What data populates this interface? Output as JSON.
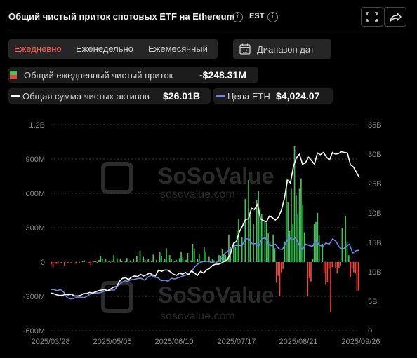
{
  "header": {
    "title": "Общий чистый приток спотовых ETF на Ethereum",
    "timezone": "EST",
    "fullscreen_icon": "fullscreen-icon",
    "share_icon": "share-icon"
  },
  "period_tabs": [
    {
      "label": "Ежедневно",
      "active": true
    },
    {
      "label": "Еженедельно",
      "active": false
    },
    {
      "label": "Ежемесячный",
      "active": false
    }
  ],
  "range_button": {
    "label": "Диапазон дат",
    "icon": "calendar-icon",
    "icon_text": "12"
  },
  "legend": {
    "daily_inflow": {
      "label": "Общий ежедневный чистый приток",
      "value": "-$248.31M"
    },
    "total_assets": {
      "label": "Общая сумма чистых активов",
      "value": "$26.01B"
    },
    "eth_price": {
      "label": "Цена ETH",
      "value": "$4,024.07"
    }
  },
  "colors": {
    "positive": "#43c25a",
    "negative": "#e8473c",
    "assets_line": "#ffffff",
    "price_line": "#6f86e6",
    "grid": "#3a3a3a",
    "axis_text": "#8c8c8c",
    "accent": "#ff5a4f"
  },
  "watermark": {
    "text": "SoSoValue",
    "sub": "sosovalue.com"
  },
  "chart_data": {
    "type": "bar",
    "x_ticks": [
      "2025/03/28",
      "2025/05/05",
      "2025/06/10",
      "2025/07/17",
      "2025/08/21",
      "2025/09/26"
    ],
    "y_left": {
      "ticks": [
        "1.2B",
        "900M",
        "600M",
        "300M",
        "0",
        "-300M",
        "-600M"
      ],
      "min": -600,
      "max": 1200,
      "unit": "M USD"
    },
    "y_right": {
      "ticks": [
        "35B",
        "30B",
        "25B",
        "20B",
        "15B",
        "10B",
        "5B",
        "0"
      ],
      "min": 0,
      "max": 35,
      "unit": "B USD"
    },
    "series": [
      {
        "name": "Общий ежедневный чистый приток",
        "type": "bar",
        "values": [
          -20,
          -45,
          0,
          -15,
          -20,
          0,
          -10,
          0,
          -30,
          0,
          -10,
          0,
          -5,
          0,
          0,
          -15,
          0,
          -5,
          0,
          10,
          15,
          0,
          0,
          -10,
          -25,
          0,
          5,
          10,
          -10,
          20,
          50,
          25,
          0,
          30,
          0,
          5,
          -5,
          10,
          60,
          0,
          35,
          0,
          25,
          10,
          0,
          5,
          35,
          0,
          15,
          0,
          25,
          0,
          55,
          0,
          100,
          0,
          45,
          20,
          0,
          30,
          0,
          10,
          65,
          0,
          20,
          0,
          90,
          50,
          0,
          25,
          120,
          0,
          60,
          30,
          0,
          10,
          20,
          0,
          35,
          90,
          45,
          0,
          20,
          80,
          0,
          15,
          160,
          110,
          0,
          25,
          70,
          5,
          0,
          130,
          90,
          0,
          45,
          0,
          30,
          15,
          0,
          0,
          60,
          50,
          110,
          70,
          60,
          40,
          240,
          130,
          0,
          175,
          130,
          270,
          380,
          0,
          220,
          0,
          550,
          0,
          715,
          410,
          0,
          330,
          0,
          540,
          620,
          470,
          420,
          0,
          360,
          340,
          250,
          180,
          0,
          240,
          120,
          -180,
          -120,
          -300,
          -90,
          -60,
          180,
          730,
          520,
          270,
          640,
          330,
          1010,
          580,
          420,
          640,
          730,
          500,
          260,
          0,
          -300,
          -140,
          -170,
          30,
          330,
          350,
          430,
          230,
          0,
          160,
          -95,
          -200,
          -175,
          -60,
          -440,
          -45,
          0,
          -55,
          -100,
          -50,
          -30,
          300,
          0,
          400,
          170,
          60,
          -135,
          -50,
          -90,
          -100,
          -250,
          -248.31
        ]
      },
      {
        "name": "Общая сумма чистых активов",
        "type": "line",
        "values": [
          6.4,
          6.3,
          6.1,
          6.0,
          6.0,
          6.2,
          6.1,
          6.2,
          5.9,
          5.9,
          6.0,
          6.3,
          6.3,
          6.5,
          6.4,
          6.6,
          6.8,
          6.9,
          7.0,
          6.8,
          7.1,
          7.4,
          7.5,
          8.4,
          8.9,
          9.0,
          8.7,
          9.1,
          9.3,
          9.2,
          9.6,
          9.3,
          9.5,
          9.8,
          9.5,
          9.3,
          10.3,
          10.1,
          10.3,
          10.3,
          10.0,
          9.6,
          9.4,
          9.8,
          9.6,
          9.9,
          9.5,
          10.2,
          9.8,
          9.4,
          10.1,
          9.8,
          10.3,
          10.6,
          11.1,
          11.3,
          11.3,
          11.5,
          11.8,
          12.1,
          13.1,
          14.8,
          15.2,
          16.8,
          17.8,
          18.9,
          19.0,
          20.8,
          20.6,
          21.5,
          19.0,
          18.7,
          18.5,
          19.5,
          19.2,
          18.8,
          19.3,
          20.5,
          22.5,
          25.6,
          25.1,
          27.9,
          29.4,
          30.0,
          28.3,
          28.5,
          29.5,
          28.9,
          28.3,
          30.2,
          29.9,
          30.3,
          29.5,
          29.0,
          30.3,
          30.0,
          30.1,
          30.4,
          30.3,
          30.2,
          28.2,
          27.8,
          26.9,
          26.0
        ]
      },
      {
        "name": "Цена ETH",
        "type": "line",
        "values": [
          7.0,
          7.0,
          6.8,
          7.0,
          6.5,
          5.6,
          5.4,
          5.5,
          5.7,
          5.7,
          5.6,
          5.9,
          6.3,
          6.4,
          6.4,
          6.5,
          6.7,
          6.8,
          6.9,
          6.9,
          7.6,
          8.1,
          8.5,
          8.4,
          8.7,
          8.7,
          8.9,
          8.9,
          8.6,
          9.1,
          9.4,
          9.1,
          9.0,
          8.5,
          8.6,
          8.4,
          8.9,
          8.8,
          9.0,
          9.2,
          9.4,
          9.6,
          10.1,
          10.9,
          11.4,
          11.7,
          11.8,
          11.8,
          11.6,
          11.5,
          11.8,
          12.3,
          13.2,
          13.6,
          14.0,
          14.5,
          14.5,
          14.4,
          15.6,
          15.6,
          14.8,
          14.8,
          14.4,
          15.6,
          15.8,
          14.6,
          14.4,
          14.7,
          13.9,
          13.8,
          14.8,
          15.9,
          15.4,
          15.8,
          14.6,
          13.8,
          14.7,
          14.5,
          14.3,
          15.4,
          14.6,
          14.3,
          14.9,
          14.7,
          15.6,
          15.2,
          14.2,
          13.8,
          14.3,
          14.7,
          13.2,
          13.6,
          13.7
        ]
      }
    ]
  }
}
